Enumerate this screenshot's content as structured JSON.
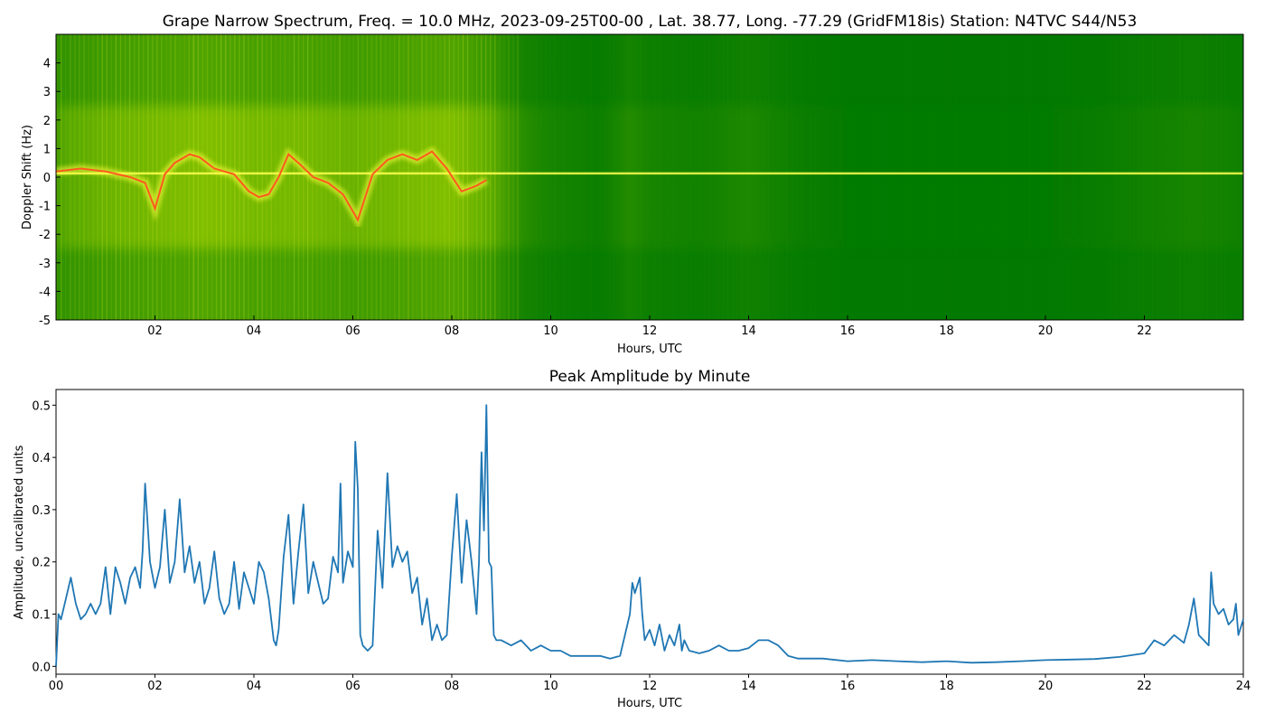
{
  "chart_data": [
    {
      "type": "heatmap",
      "title": "Grape Narrow Spectrum, Freq. = 10.0 MHz, 2023-09-25T00-00 , Lat.  38.77, Long. -77.29 (GridFM18is) Station: N4TVC S44/N53",
      "xlabel": "Hours, UTC",
      "ylabel": "Doppler Shift (Hz)",
      "xlim": [
        0,
        24
      ],
      "ylim": [
        -5,
        5
      ],
      "x_ticks": [
        {
          "value": 2,
          "label": "02"
        },
        {
          "value": 4,
          "label": "04"
        },
        {
          "value": 6,
          "label": "06"
        },
        {
          "value": 8,
          "label": "08"
        },
        {
          "value": 10,
          "label": "10"
        },
        {
          "value": 12,
          "label": "12"
        },
        {
          "value": 14,
          "label": "14"
        },
        {
          "value": 16,
          "label": "16"
        },
        {
          "value": 18,
          "label": "18"
        },
        {
          "value": 20,
          "label": "20"
        },
        {
          "value": 22,
          "label": "22"
        }
      ],
      "y_ticks": [
        {
          "value": 4,
          "label": "4"
        },
        {
          "value": 3,
          "label": "3"
        },
        {
          "value": 2,
          "label": "2"
        },
        {
          "value": 1,
          "label": "1"
        },
        {
          "value": 0,
          "label": "0"
        },
        {
          "value": -1,
          "label": "-1"
        },
        {
          "value": -2,
          "label": "-2"
        },
        {
          "value": -3,
          "label": "-3"
        },
        {
          "value": -4,
          "label": "-4"
        },
        {
          "value": -5,
          "label": "-5"
        }
      ],
      "background_color": "#007800",
      "colors": {
        "low": "#007800",
        "mid": "#c8e600",
        "high": "#ffff30",
        "peak": "#ff4a1c"
      },
      "carrier_line": {
        "doppler_hz": 0.13
      },
      "trace_hours": [
        0,
        0.5,
        1,
        1.5,
        1.8,
        2.0,
        2.2,
        2.4,
        2.7,
        2.9,
        3.2,
        3.6,
        3.9,
        4.1,
        4.3,
        4.5,
        4.7,
        4.9,
        5.2,
        5.5,
        5.8,
        6.1,
        6.4,
        6.7,
        7.0,
        7.3,
        7.6,
        7.9,
        8.2,
        8.5,
        8.7
      ],
      "trace_doppler_hz": [
        0.2,
        0.3,
        0.2,
        0.0,
        -0.2,
        -1.1,
        0.1,
        0.5,
        0.8,
        0.7,
        0.3,
        0.1,
        -0.5,
        -0.7,
        -0.6,
        0.0,
        0.8,
        0.5,
        0.0,
        -0.2,
        -0.6,
        -1.5,
        0.1,
        0.6,
        0.8,
        0.6,
        0.9,
        0.3,
        -0.5,
        -0.3,
        -0.1
      ],
      "activity_hours": [
        0,
        1,
        2,
        3,
        4,
        5,
        6,
        7,
        8,
        8.8,
        9.5,
        10,
        11,
        11.6,
        12,
        13,
        14,
        15,
        16,
        18,
        20,
        21,
        22,
        23,
        23.8
      ],
      "activity_level": [
        0.7,
        0.8,
        0.85,
        0.9,
        0.85,
        0.85,
        0.8,
        0.85,
        0.9,
        0.75,
        0.45,
        0.35,
        0.25,
        0.45,
        0.35,
        0.3,
        0.4,
        0.25,
        0.15,
        0.15,
        0.15,
        0.2,
        0.3,
        0.35,
        0.3
      ]
    },
    {
      "type": "line",
      "title": "Peak Amplitude by Minute",
      "xlabel": "Hours, UTC",
      "ylabel": "Amplitude, uncalibrated units",
      "xlim": [
        0,
        24
      ],
      "ylim": [
        -0.015,
        0.53
      ],
      "line_color": "#1f77b4",
      "x_ticks": [
        {
          "value": 0,
          "label": "00"
        },
        {
          "value": 2,
          "label": "02"
        },
        {
          "value": 4,
          "label": "04"
        },
        {
          "value": 6,
          "label": "06"
        },
        {
          "value": 8,
          "label": "08"
        },
        {
          "value": 10,
          "label": "10"
        },
        {
          "value": 12,
          "label": "12"
        },
        {
          "value": 14,
          "label": "14"
        },
        {
          "value": 16,
          "label": "16"
        },
        {
          "value": 18,
          "label": "18"
        },
        {
          "value": 20,
          "label": "20"
        },
        {
          "value": 22,
          "label": "22"
        },
        {
          "value": 24,
          "label": "24"
        }
      ],
      "y_ticks": [
        {
          "value": 0.0,
          "label": "0.0"
        },
        {
          "value": 0.1,
          "label": "0.1"
        },
        {
          "value": 0.2,
          "label": "0.2"
        },
        {
          "value": 0.3,
          "label": "0.3"
        },
        {
          "value": 0.4,
          "label": "0.4"
        },
        {
          "value": 0.5,
          "label": "0.5"
        }
      ],
      "series": [
        {
          "x": [
            0,
            0.05,
            0.1,
            0.2,
            0.3,
            0.4,
            0.5,
            0.6,
            0.7,
            0.8,
            0.9,
            1.0,
            1.1,
            1.2,
            1.3,
            1.4,
            1.5,
            1.6,
            1.7,
            1.75,
            1.8,
            1.9,
            2.0,
            2.1,
            2.2,
            2.3,
            2.4,
            2.5,
            2.6,
            2.7,
            2.8,
            2.9,
            3.0,
            3.1,
            3.2,
            3.3,
            3.4,
            3.5,
            3.6,
            3.7,
            3.8,
            3.9,
            4.0,
            4.1,
            4.2,
            4.3,
            4.4,
            4.45,
            4.5,
            4.6,
            4.7,
            4.8,
            4.9,
            5.0,
            5.1,
            5.2,
            5.3,
            5.4,
            5.5,
            5.6,
            5.7,
            5.75,
            5.8,
            5.9,
            6.0,
            6.05,
            6.1,
            6.15,
            6.2,
            6.3,
            6.4,
            6.5,
            6.6,
            6.7,
            6.8,
            6.9,
            7.0,
            7.1,
            7.2,
            7.3,
            7.4,
            7.5,
            7.6,
            7.7,
            7.8,
            7.9,
            8.0,
            8.1,
            8.2,
            8.3,
            8.4,
            8.5,
            8.55,
            8.6,
            8.65,
            8.7,
            8.75,
            8.8,
            8.85,
            8.9,
            9.0,
            9.2,
            9.4,
            9.6,
            9.8,
            10.0,
            10.2,
            10.4,
            10.6,
            10.8,
            11.0,
            11.2,
            11.4,
            11.6,
            11.65,
            11.7,
            11.8,
            11.85,
            11.9,
            12.0,
            12.1,
            12.2,
            12.3,
            12.4,
            12.5,
            12.6,
            12.65,
            12.7,
            12.8,
            13.0,
            13.2,
            13.4,
            13.6,
            13.8,
            14.0,
            14.2,
            14.4,
            14.6,
            14.8,
            15.0,
            15.5,
            16.0,
            16.5,
            17.0,
            17.5,
            18.0,
            18.5,
            19.0,
            19.5,
            20.0,
            20.5,
            21.0,
            21.5,
            22.0,
            22.2,
            22.4,
            22.6,
            22.8,
            22.9,
            23.0,
            23.1,
            23.2,
            23.3,
            23.35,
            23.4,
            23.5,
            23.6,
            23.7,
            23.8,
            23.85,
            23.9,
            24.0
          ],
          "values": [
            0.0,
            0.1,
            0.09,
            0.13,
            0.17,
            0.12,
            0.09,
            0.1,
            0.12,
            0.1,
            0.12,
            0.19,
            0.1,
            0.19,
            0.16,
            0.12,
            0.17,
            0.19,
            0.15,
            0.22,
            0.35,
            0.2,
            0.15,
            0.19,
            0.3,
            0.16,
            0.2,
            0.32,
            0.18,
            0.23,
            0.16,
            0.2,
            0.12,
            0.15,
            0.22,
            0.13,
            0.1,
            0.12,
            0.2,
            0.11,
            0.18,
            0.15,
            0.12,
            0.2,
            0.18,
            0.13,
            0.05,
            0.04,
            0.07,
            0.21,
            0.29,
            0.12,
            0.22,
            0.31,
            0.14,
            0.2,
            0.16,
            0.12,
            0.13,
            0.21,
            0.18,
            0.35,
            0.16,
            0.22,
            0.19,
            0.43,
            0.34,
            0.06,
            0.04,
            0.03,
            0.04,
            0.26,
            0.15,
            0.37,
            0.19,
            0.23,
            0.2,
            0.22,
            0.14,
            0.17,
            0.08,
            0.13,
            0.05,
            0.08,
            0.05,
            0.06,
            0.21,
            0.33,
            0.16,
            0.28,
            0.2,
            0.1,
            0.2,
            0.41,
            0.26,
            0.5,
            0.2,
            0.19,
            0.06,
            0.05,
            0.05,
            0.04,
            0.05,
            0.03,
            0.04,
            0.03,
            0.03,
            0.02,
            0.02,
            0.02,
            0.02,
            0.015,
            0.02,
            0.1,
            0.16,
            0.14,
            0.17,
            0.1,
            0.05,
            0.07,
            0.04,
            0.08,
            0.03,
            0.06,
            0.04,
            0.08,
            0.03,
            0.05,
            0.03,
            0.025,
            0.03,
            0.04,
            0.03,
            0.03,
            0.035,
            0.05,
            0.05,
            0.04,
            0.02,
            0.015,
            0.015,
            0.01,
            0.012,
            0.01,
            0.008,
            0.01,
            0.007,
            0.008,
            0.01,
            0.012,
            0.013,
            0.014,
            0.018,
            0.025,
            0.05,
            0.04,
            0.06,
            0.045,
            0.08,
            0.13,
            0.06,
            0.05,
            0.04,
            0.18,
            0.12,
            0.1,
            0.11,
            0.08,
            0.09,
            0.12,
            0.06,
            0.09
          ]
        }
      ]
    }
  ]
}
